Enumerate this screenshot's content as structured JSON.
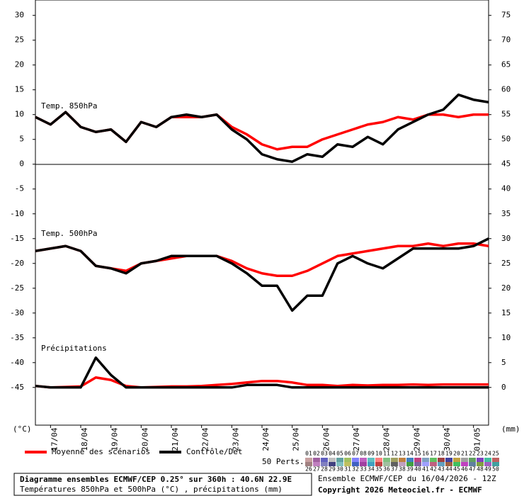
{
  "chart_data": {
    "type": "line",
    "panel_labels": [
      "Temp. 850hPa",
      "Temp. 500hPa",
      "Précipitations"
    ],
    "y_unit": "(°C)",
    "y2_unit": "(mm)",
    "xlim": [
      0,
      360
    ],
    "xticks": [
      {
        "value": 12,
        "label": "17/04"
      },
      {
        "value": 36,
        "label": "18/04"
      },
      {
        "value": 60,
        "label": "19/04"
      },
      {
        "value": 84,
        "label": "20/04"
      },
      {
        "value": 108,
        "label": "21/04"
      },
      {
        "value": 132,
        "label": "22/04"
      },
      {
        "value": 156,
        "label": "23/04"
      },
      {
        "value": 180,
        "label": "24/04"
      },
      {
        "value": 204,
        "label": "25/04"
      },
      {
        "value": 228,
        "label": "26/04"
      },
      {
        "value": 252,
        "label": "27/04"
      },
      {
        "value": 276,
        "label": "28/04"
      },
      {
        "value": 300,
        "label": "29/04"
      },
      {
        "value": 324,
        "label": "30/04"
      },
      {
        "value": 348,
        "label": "01/05"
      }
    ],
    "ylim": [
      -52.6,
      33.1
    ],
    "yticks": [
      30,
      25,
      20,
      15,
      10,
      5,
      0,
      -5,
      -10,
      -15,
      -20,
      -25,
      -30,
      -35,
      -40,
      -45
    ],
    "y2lim": [
      -7.6,
      78.1
    ],
    "y2ticks": [
      75,
      70,
      65,
      60,
      55,
      50,
      45,
      40,
      35,
      30,
      25,
      20,
      15,
      10,
      5,
      0
    ],
    "x": [
      0,
      12,
      24,
      36,
      48,
      60,
      72,
      84,
      96,
      108,
      120,
      132,
      144,
      156,
      168,
      180,
      192,
      204,
      216,
      228,
      240,
      252,
      264,
      276,
      288,
      300,
      312,
      324,
      336,
      348,
      360
    ],
    "series": [
      {
        "name": "Moyenne des scénarios",
        "color": "#ff0000",
        "t850": [
          9.5,
          8,
          10.5,
          7.5,
          6.5,
          7,
          4.5,
          8.5,
          7.5,
          9.5,
          9.5,
          9.5,
          10,
          7.5,
          6,
          4,
          3,
          3.5,
          3.5,
          5,
          6,
          7,
          8,
          8.5,
          9.5,
          9,
          10,
          10,
          9.5,
          10,
          10
        ],
        "t500": [
          -17.5,
          -17,
          -16.5,
          -17.5,
          -20.5,
          -21,
          -21.5,
          -20,
          -19.5,
          -19,
          -18.5,
          -18.5,
          -18.5,
          -19.5,
          -21,
          -22,
          -22.5,
          -22.5,
          -21.5,
          -20,
          -18.5,
          -18,
          -17.5,
          -17,
          -16.5,
          -16.5,
          -16,
          -16.5,
          -16,
          -16,
          -16.5
        ],
        "precip": [
          0.3,
          0,
          0.1,
          0.2,
          2,
          1.5,
          0.3,
          0,
          0.1,
          0.2,
          0.2,
          0.3,
          0.5,
          0.7,
          1,
          1.3,
          1.3,
          1,
          0.5,
          0.5,
          0.3,
          0.5,
          0.4,
          0.5,
          0.5,
          0.6,
          0.5,
          0.6,
          0.6,
          0.6,
          0.6
        ]
      },
      {
        "name": "Contrôle/Det",
        "color": "#000000",
        "t850": [
          9.5,
          8,
          10.5,
          7.5,
          6.5,
          7,
          4.5,
          8.5,
          7.5,
          9.5,
          10,
          9.5,
          10,
          7,
          5,
          2,
          1,
          0.5,
          2,
          1.5,
          4,
          3.5,
          5.5,
          4,
          7,
          8.5,
          10,
          11,
          14,
          13,
          12.5
        ],
        "t500": [
          -17.5,
          -17,
          -16.5,
          -17.5,
          -20.5,
          -21,
          -22,
          -20,
          -19.5,
          -18.5,
          -18.5,
          -18.5,
          -18.5,
          -20,
          -22,
          -24.5,
          -24.5,
          -29.5,
          -26.5,
          -26.5,
          -20,
          -18.5,
          -20,
          -21,
          -19,
          -17,
          -17,
          -17,
          -17,
          -16.5,
          -15
        ],
        "precip": [
          0.3,
          0,
          0,
          0,
          6,
          2.5,
          0,
          0,
          0,
          0,
          0,
          0,
          0,
          0,
          0.5,
          0.5,
          0.5,
          0,
          0,
          0,
          0,
          0,
          0,
          0,
          0,
          0,
          0,
          0,
          0,
          0,
          0
        ]
      }
    ],
    "perts_label": "50 Perts.",
    "perts": [
      "01",
      "02",
      "03",
      "04",
      "05",
      "06",
      "07",
      "08",
      "09",
      "10",
      "11",
      "12",
      "13",
      "14",
      "15",
      "16",
      "17",
      "18",
      "19",
      "20",
      "21",
      "22",
      "23",
      "24",
      "25",
      "26",
      "27",
      "28",
      "29",
      "30",
      "31",
      "32",
      "33",
      "34",
      "35",
      "36",
      "37",
      "38",
      "39",
      "40",
      "41",
      "42",
      "43",
      "44",
      "45",
      "46",
      "47",
      "48",
      "49",
      "50"
    ],
    "pert_colors": [
      "#c8a0a0",
      "#a060a0",
      "#6060c0",
      "#c0c0c0",
      "#60a0a0",
      "#a0c060",
      "#8080ff",
      "#c060c0",
      "#60c0c0",
      "#ff8080",
      "#80c080",
      "#a0a060",
      "#c08040",
      "#4080c0",
      "#c04080",
      "#80a0c0",
      "#60c060",
      "#a04040",
      "#4040a0",
      "#c0a040",
      "#a0a0a0",
      "#60a060",
      "#8040c0",
      "#40c0a0",
      "#c06060",
      "#a08080",
      "#c080c0",
      "#8080c0",
      "#404080",
      "#80c0c0",
      "#c0c060",
      "#4060c0",
      "#a040a0",
      "#40a0c0",
      "#c04040",
      "#a0c0a0",
      "#606060",
      "#c0a0c0",
      "#40a040",
      "#8060a0",
      "#a0a0ff",
      "#c06080",
      "#60a0c0",
      "#a06040",
      "#40c060",
      "#c040c0",
      "#6080a0",
      "#80a040",
      "#a060c0",
      "#40a0a0"
    ],
    "footer": {
      "title": "Diagramme ensembles ECMWF/CEP 0.25° sur 360h : 40.6N 22.9E",
      "subtitle": "Températures 850hPa et 500hPa (°C) , précipitations (mm)",
      "run": "Ensemble ECMWF/CEP du 16/04/2026 - 12Z",
      "copyright": "Copyright 2026 Meteociel.fr - ECMWF"
    }
  }
}
